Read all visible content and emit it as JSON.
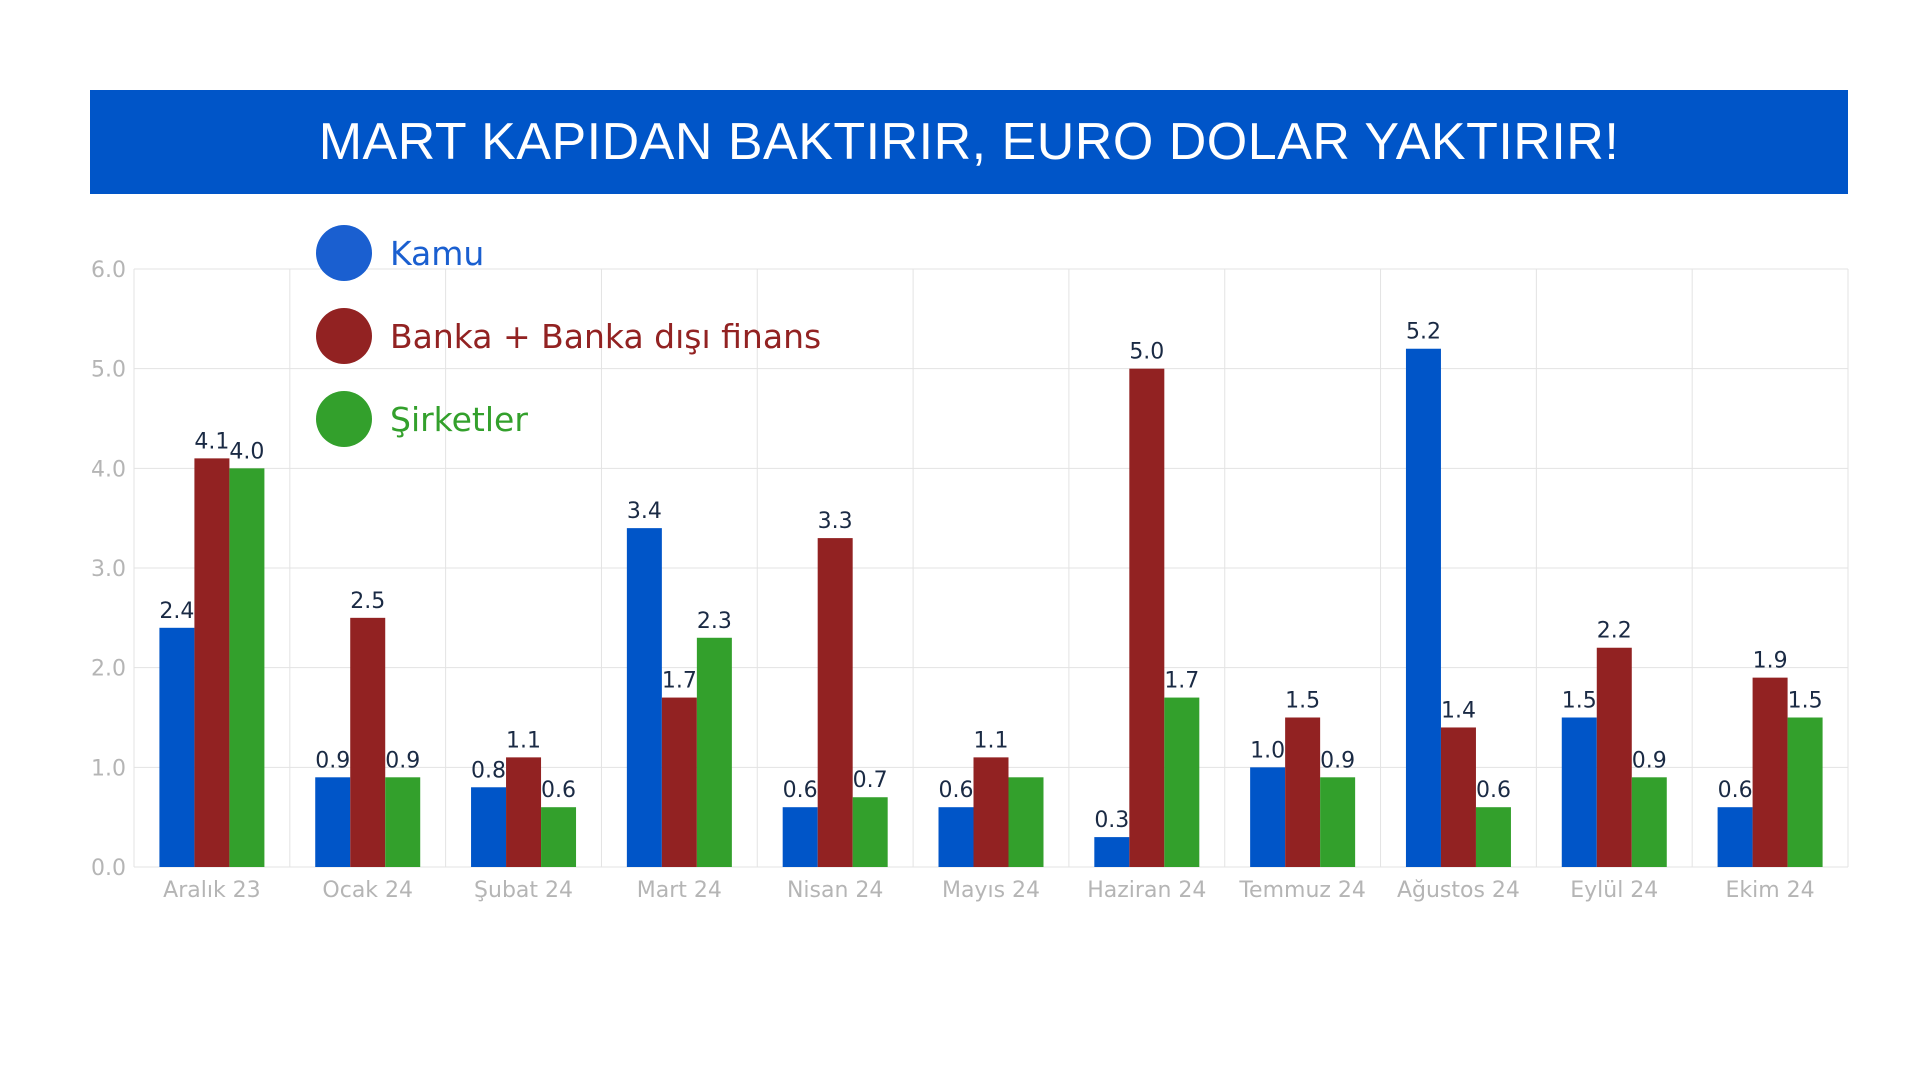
{
  "title": "MART KAPIDAN BAKTIRIR, EURO DOLAR YAKTIRIR!",
  "colors": {
    "banner": "#0055c8",
    "kamu": "#0055c8",
    "banka": "#922222",
    "sirketler": "#33a02c",
    "axis_text": "#b5b5b5",
    "value_text": "#1a2a44",
    "grid": "#e3e3e3"
  },
  "legend": [
    {
      "label": "Kamu",
      "color": "#1a5fd0",
      "icon": "circle-marker"
    },
    {
      "label": "Banka + Banka dışı finans",
      "color": "#922222",
      "icon": "circle-marker"
    },
    {
      "label": "Şirketler",
      "color": "#33a02c",
      "icon": "circle-marker"
    }
  ],
  "chart_data": {
    "type": "bar",
    "title": "MART KAPIDAN BAKTIRIR, EURO DOLAR YAKTIRIR!",
    "categories": [
      "Aralık 23",
      "Ocak 24",
      "Şubat 24",
      "Mart 24",
      "Nisan 24",
      "Mayıs 24",
      "Haziran 24",
      "Temmuz 24",
      "Ağustos 24",
      "Eylül 24",
      "Ekim 24"
    ],
    "series": [
      {
        "name": "Kamu",
        "color": "#0055c8",
        "values": [
          2.4,
          0.9,
          0.8,
          3.4,
          0.6,
          0.6,
          0.3,
          1.0,
          5.2,
          1.5,
          0.6
        ]
      },
      {
        "name": "Banka + Banka dışı finans",
        "color": "#922222",
        "values": [
          4.1,
          2.5,
          1.1,
          1.7,
          3.3,
          1.1,
          5.0,
          1.5,
          1.4,
          2.2,
          1.9
        ]
      },
      {
        "name": "Şirketler",
        "color": "#33a02c",
        "values": [
          4.0,
          0.9,
          0.6,
          2.3,
          0.7,
          0.9,
          1.7,
          0.9,
          0.6,
          0.9,
          1.5
        ]
      }
    ],
    "data_labels": [
      [
        "2.4",
        "0.9",
        "0.8",
        "3.4",
        "0.6",
        "0.6",
        "0.3",
        "1.0",
        "5.2",
        "1.5",
        "0.6"
      ],
      [
        "4.1",
        "2.5",
        "1.1",
        "1.7",
        "3.3",
        "1.1",
        "5.0",
        "1.5",
        "1.4",
        "2.2",
        "1.9"
      ],
      [
        "4.0",
        "0.9",
        "0.6",
        "2.3",
        "0.7",
        "",
        "1.7",
        "0.9",
        "0.6",
        "0.9",
        "1.5"
      ]
    ],
    "y_ticks": [
      "0.0",
      "1.0",
      "2.0",
      "3.0",
      "4.0",
      "5.0",
      "6.0"
    ],
    "ylim": [
      0,
      6
    ],
    "xlabel": "",
    "ylabel": "",
    "grid": true,
    "legend_position": "top-left"
  }
}
